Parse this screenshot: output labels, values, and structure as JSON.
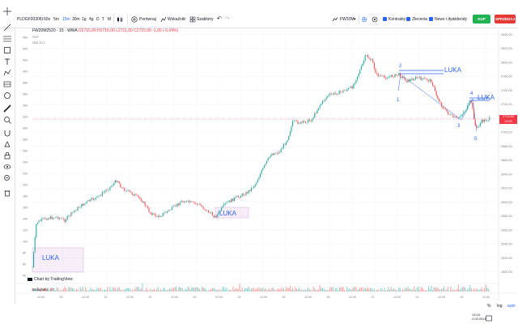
{
  "toolbar": {
    "symbol": "PLDGF00306t",
    "intervals": [
      "60s",
      "5m",
      "15m",
      "30m",
      "1g",
      "4g",
      "D",
      "T",
      "M"
    ],
    "active_interval": "15m",
    "compare_label": "Porównaj",
    "indicators_label": "Wskaźniki",
    "templates_label": "Szablony",
    "instrument": "FW20M",
    "checkbox_kontrakty": "Kontrakty",
    "checkbox_zlecenia": "Zlecenia",
    "checkbox_news": "News i dywidendy",
    "buy_label": "KUP",
    "sell_label": "SPRZEDAJ"
  },
  "legend": {
    "title": "FW20M2520 · 15 · WWA",
    "values": "O2715,00 H2715,00 L2711,00 C2715,00 -1,00 (-0,04%)",
    "line2": "SXP",
    "line3": "SMI 20 1"
  },
  "indicator": {
    "name": "Wolumen",
    "value": "27"
  },
  "attribution": "Chart by TradingView",
  "price_axis": [
    "2840,00",
    "2820,00",
    "2800,00",
    "2780,00",
    "2760,00",
    "2740,00",
    "2720,00",
    "2700,00",
    "2680,00",
    "2660,00",
    "2640,00",
    "2620,00",
    "2600,00",
    "2580,00",
    "2560,00",
    "2540,00",
    "2520,00",
    "2500,00"
  ],
  "left_axis": [
    "460",
    "440",
    "420",
    "400",
    "380",
    "360",
    "340",
    "320",
    "300",
    "280",
    "260",
    "240",
    "220",
    "200",
    "180",
    "160",
    "140",
    "120",
    "100",
    "80",
    "60",
    "40"
  ],
  "time_axis": [
    "12:00",
    "18",
    "12:00",
    "19",
    "12:00",
    "20",
    "12:00",
    "23",
    "12:00",
    "24",
    "12:00",
    "25",
    "12:00",
    "26",
    "12:00",
    "27",
    "12:00",
    "01",
    "12:00",
    "02",
    "12:00"
  ],
  "current_price": {
    "value": "2715,00",
    "sub": "13:59"
  },
  "annotations": {
    "luka_boxes": [
      "LUKA",
      "LUKA"
    ],
    "luka_lines": [
      "LUKA",
      "LUKA"
    ],
    "wave_numbers": [
      "1",
      "2",
      "3",
      "4",
      "5"
    ]
  },
  "bottom_right": {
    "pct": "%",
    "log": "log",
    "auto": "auto"
  },
  "clock": {
    "time": "13:15",
    "date": "2.03.2021"
  },
  "colors": {
    "up": "#26a69a",
    "down": "#ef5350",
    "accent": "#2962ff",
    "buy": "#21b253",
    "sell": "#e53935"
  }
}
